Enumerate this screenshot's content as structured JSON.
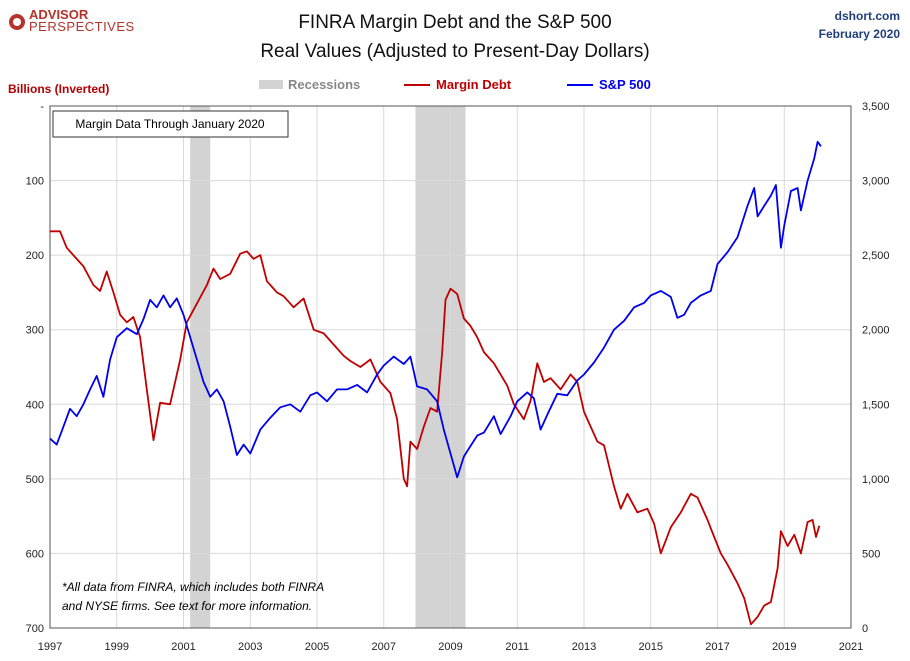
{
  "logo": {
    "line1": "ADVISOR",
    "line2": "PERSPECTIVES"
  },
  "source": {
    "site": "dshort.com",
    "date": "February 2020"
  },
  "note_box": "Margin Data Through January 2020",
  "footnote": {
    "line1": "*All data from FINRA, which includes both FINRA",
    "line2": "and NYSE firms. See text for more information."
  },
  "colors": {
    "margin": "#c00000",
    "sp500": "#0000ee",
    "recession": "#d3d3d3",
    "grid": "#d9d9d9"
  },
  "chart_data": {
    "type": "line",
    "title": "FINRA Margin Debt and the S&P 500",
    "subtitle": "Real Values (Adjusted to Present-Day Dollars)",
    "ylabel_left": "Billions (Inverted)",
    "legend": [
      "Recessions",
      "Margin Debt",
      "S&P 500"
    ],
    "legend_position": "top",
    "grid": true,
    "x_ticks": [
      "1997",
      "1999",
      "2001",
      "2003",
      "2005",
      "2007",
      "2009",
      "2011",
      "2013",
      "2015",
      "2017",
      "2019",
      "2021"
    ],
    "xlim": [
      1997,
      2021
    ],
    "y_left": {
      "ticks": [
        "-",
        "100",
        "200",
        "300",
        "400",
        "500",
        "600",
        "700"
      ],
      "range": [
        0,
        700
      ],
      "inverted": true
    },
    "y_right": {
      "ticks": [
        "0",
        "500",
        "1,000",
        "1,500",
        "2,000",
        "2,500",
        "3,000",
        "3,500"
      ],
      "range": [
        0,
        3500
      ]
    },
    "recessions": [
      [
        2001.2,
        2001.8
      ],
      [
        2007.95,
        2009.45
      ]
    ],
    "series": [
      {
        "name": "Margin Debt",
        "axis": "left",
        "points": [
          [
            1997.0,
            168
          ],
          [
            1997.3,
            168
          ],
          [
            1997.5,
            190
          ],
          [
            1997.8,
            205
          ],
          [
            1998.0,
            215
          ],
          [
            1998.3,
            240
          ],
          [
            1998.5,
            248
          ],
          [
            1998.7,
            222
          ],
          [
            1998.9,
            250
          ],
          [
            1999.1,
            280
          ],
          [
            1999.3,
            290
          ],
          [
            1999.5,
            283
          ],
          [
            1999.7,
            310
          ],
          [
            1999.9,
            380
          ],
          [
            2000.1,
            448
          ],
          [
            2000.3,
            398
          ],
          [
            2000.6,
            400
          ],
          [
            2000.9,
            340
          ],
          [
            2001.1,
            290
          ],
          [
            2001.4,
            265
          ],
          [
            2001.7,
            240
          ],
          [
            2001.9,
            218
          ],
          [
            2002.1,
            232
          ],
          [
            2002.4,
            225
          ],
          [
            2002.7,
            198
          ],
          [
            2002.9,
            195
          ],
          [
            2003.1,
            205
          ],
          [
            2003.3,
            200
          ],
          [
            2003.5,
            235
          ],
          [
            2003.8,
            250
          ],
          [
            2004.0,
            255
          ],
          [
            2004.3,
            270
          ],
          [
            2004.6,
            258
          ],
          [
            2004.9,
            300
          ],
          [
            2005.2,
            305
          ],
          [
            2005.5,
            320
          ],
          [
            2005.8,
            335
          ],
          [
            2006.0,
            342
          ],
          [
            2006.3,
            350
          ],
          [
            2006.6,
            340
          ],
          [
            2006.9,
            370
          ],
          [
            2007.2,
            385
          ],
          [
            2007.4,
            420
          ],
          [
            2007.6,
            500
          ],
          [
            2007.7,
            510
          ],
          [
            2007.8,
            450
          ],
          [
            2008.0,
            460
          ],
          [
            2008.2,
            430
          ],
          [
            2008.4,
            405
          ],
          [
            2008.6,
            410
          ],
          [
            2008.75,
            330
          ],
          [
            2008.85,
            260
          ],
          [
            2009.0,
            245
          ],
          [
            2009.2,
            252
          ],
          [
            2009.4,
            285
          ],
          [
            2009.6,
            295
          ],
          [
            2009.8,
            310
          ],
          [
            2010.0,
            330
          ],
          [
            2010.3,
            345
          ],
          [
            2010.5,
            360
          ],
          [
            2010.7,
            375
          ],
          [
            2010.9,
            400
          ],
          [
            2011.2,
            420
          ],
          [
            2011.4,
            395
          ],
          [
            2011.6,
            345
          ],
          [
            2011.8,
            370
          ],
          [
            2012.0,
            365
          ],
          [
            2012.3,
            380
          ],
          [
            2012.6,
            360
          ],
          [
            2012.8,
            370
          ],
          [
            2013.0,
            410
          ],
          [
            2013.2,
            430
          ],
          [
            2013.4,
            450
          ],
          [
            2013.6,
            455
          ],
          [
            2013.9,
            510
          ],
          [
            2014.1,
            540
          ],
          [
            2014.3,
            520
          ],
          [
            2014.6,
            545
          ],
          [
            2014.9,
            540
          ],
          [
            2015.1,
            560
          ],
          [
            2015.3,
            600
          ],
          [
            2015.6,
            565
          ],
          [
            2015.9,
            545
          ],
          [
            2016.2,
            520
          ],
          [
            2016.4,
            525
          ],
          [
            2016.7,
            555
          ],
          [
            2016.9,
            578
          ],
          [
            2017.1,
            600
          ],
          [
            2017.3,
            615
          ],
          [
            2017.6,
            640
          ],
          [
            2017.8,
            660
          ],
          [
            2018.0,
            695
          ],
          [
            2018.2,
            685
          ],
          [
            2018.4,
            670
          ],
          [
            2018.6,
            665
          ],
          [
            2018.8,
            620
          ],
          [
            2018.9,
            570
          ],
          [
            2019.1,
            590
          ],
          [
            2019.3,
            575
          ],
          [
            2019.5,
            600
          ],
          [
            2019.7,
            558
          ],
          [
            2019.85,
            555
          ],
          [
            2019.95,
            578
          ],
          [
            2020.05,
            563
          ]
        ]
      },
      {
        "name": "S&P 500",
        "axis": "right",
        "points": [
          [
            1997.0,
            1270
          ],
          [
            1997.2,
            1230
          ],
          [
            1997.4,
            1350
          ],
          [
            1997.6,
            1470
          ],
          [
            1997.8,
            1420
          ],
          [
            1998.0,
            1500
          ],
          [
            1998.2,
            1600
          ],
          [
            1998.4,
            1690
          ],
          [
            1998.6,
            1550
          ],
          [
            1998.8,
            1800
          ],
          [
            1999.0,
            1950
          ],
          [
            1999.3,
            2010
          ],
          [
            1999.6,
            1970
          ],
          [
            1999.8,
            2070
          ],
          [
            2000.0,
            2200
          ],
          [
            2000.2,
            2150
          ],
          [
            2000.4,
            2230
          ],
          [
            2000.6,
            2150
          ],
          [
            2000.8,
            2210
          ],
          [
            2001.0,
            2100
          ],
          [
            2001.2,
            1950
          ],
          [
            2001.4,
            1800
          ],
          [
            2001.6,
            1650
          ],
          [
            2001.8,
            1550
          ],
          [
            2002.0,
            1600
          ],
          [
            2002.2,
            1520
          ],
          [
            2002.4,
            1350
          ],
          [
            2002.6,
            1160
          ],
          [
            2002.8,
            1230
          ],
          [
            2003.0,
            1170
          ],
          [
            2003.3,
            1330
          ],
          [
            2003.6,
            1410
          ],
          [
            2003.9,
            1480
          ],
          [
            2004.2,
            1500
          ],
          [
            2004.5,
            1450
          ],
          [
            2004.8,
            1560
          ],
          [
            2005.0,
            1580
          ],
          [
            2005.3,
            1520
          ],
          [
            2005.6,
            1600
          ],
          [
            2005.9,
            1600
          ],
          [
            2006.2,
            1630
          ],
          [
            2006.5,
            1580
          ],
          [
            2006.8,
            1700
          ],
          [
            2007.0,
            1760
          ],
          [
            2007.3,
            1820
          ],
          [
            2007.6,
            1770
          ],
          [
            2007.8,
            1820
          ],
          [
            2008.0,
            1620
          ],
          [
            2008.3,
            1600
          ],
          [
            2008.6,
            1520
          ],
          [
            2008.8,
            1330
          ],
          [
            2009.0,
            1170
          ],
          [
            2009.2,
            1010
          ],
          [
            2009.4,
            1150
          ],
          [
            2009.6,
            1220
          ],
          [
            2009.8,
            1290
          ],
          [
            2010.0,
            1310
          ],
          [
            2010.3,
            1420
          ],
          [
            2010.5,
            1300
          ],
          [
            2010.8,
            1420
          ],
          [
            2011.0,
            1520
          ],
          [
            2011.3,
            1580
          ],
          [
            2011.5,
            1540
          ],
          [
            2011.7,
            1330
          ],
          [
            2011.9,
            1430
          ],
          [
            2012.2,
            1570
          ],
          [
            2012.5,
            1560
          ],
          [
            2012.8,
            1660
          ],
          [
            2013.0,
            1700
          ],
          [
            2013.3,
            1780
          ],
          [
            2013.6,
            1880
          ],
          [
            2013.9,
            2000
          ],
          [
            2014.2,
            2060
          ],
          [
            2014.5,
            2150
          ],
          [
            2014.8,
            2180
          ],
          [
            2015.0,
            2230
          ],
          [
            2015.3,
            2260
          ],
          [
            2015.6,
            2220
          ],
          [
            2015.8,
            2080
          ],
          [
            2016.0,
            2100
          ],
          [
            2016.2,
            2180
          ],
          [
            2016.5,
            2230
          ],
          [
            2016.8,
            2260
          ],
          [
            2017.0,
            2440
          ],
          [
            2017.3,
            2520
          ],
          [
            2017.6,
            2620
          ],
          [
            2017.9,
            2830
          ],
          [
            2018.1,
            2950
          ],
          [
            2018.2,
            2760
          ],
          [
            2018.4,
            2830
          ],
          [
            2018.6,
            2900
          ],
          [
            2018.75,
            2970
          ],
          [
            2018.9,
            2550
          ],
          [
            2019.0,
            2700
          ],
          [
            2019.2,
            2930
          ],
          [
            2019.4,
            2950
          ],
          [
            2019.5,
            2800
          ],
          [
            2019.7,
            3000
          ],
          [
            2019.9,
            3150
          ],
          [
            2020.0,
            3260
          ],
          [
            2020.1,
            3230
          ]
        ]
      }
    ]
  }
}
